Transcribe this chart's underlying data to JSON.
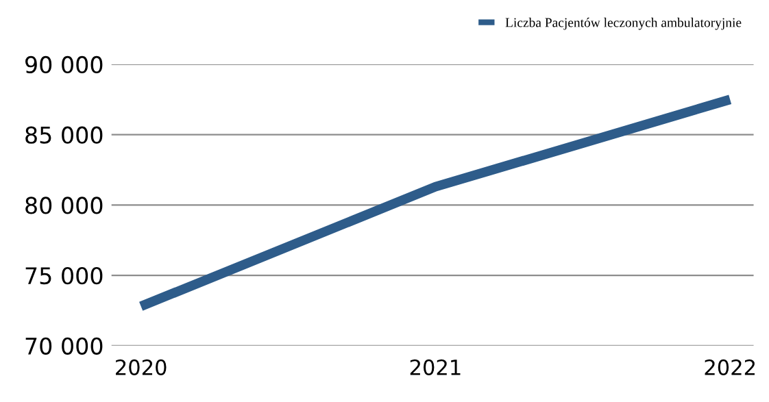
{
  "chart_data": {
    "type": "line",
    "categories": [
      "2020",
      "2021",
      "2022"
    ],
    "series": [
      {
        "name": "Liczba Pacjentów leczonych ambulatoryjnie",
        "color": "#2e5c8a",
        "values": [
          72800,
          81300,
          87500
        ]
      }
    ],
    "ylim": [
      70000,
      90000
    ],
    "yticks": [
      {
        "value": 70000,
        "label": "70 000"
      },
      {
        "value": 75000,
        "label": "75 000"
      },
      {
        "value": 80000,
        "label": "80 000"
      },
      {
        "value": 85000,
        "label": "85 000"
      },
      {
        "value": 90000,
        "label": "90 000"
      }
    ],
    "grid": "y",
    "legend": "top right",
    "marker": "none",
    "line_style": "solid"
  }
}
